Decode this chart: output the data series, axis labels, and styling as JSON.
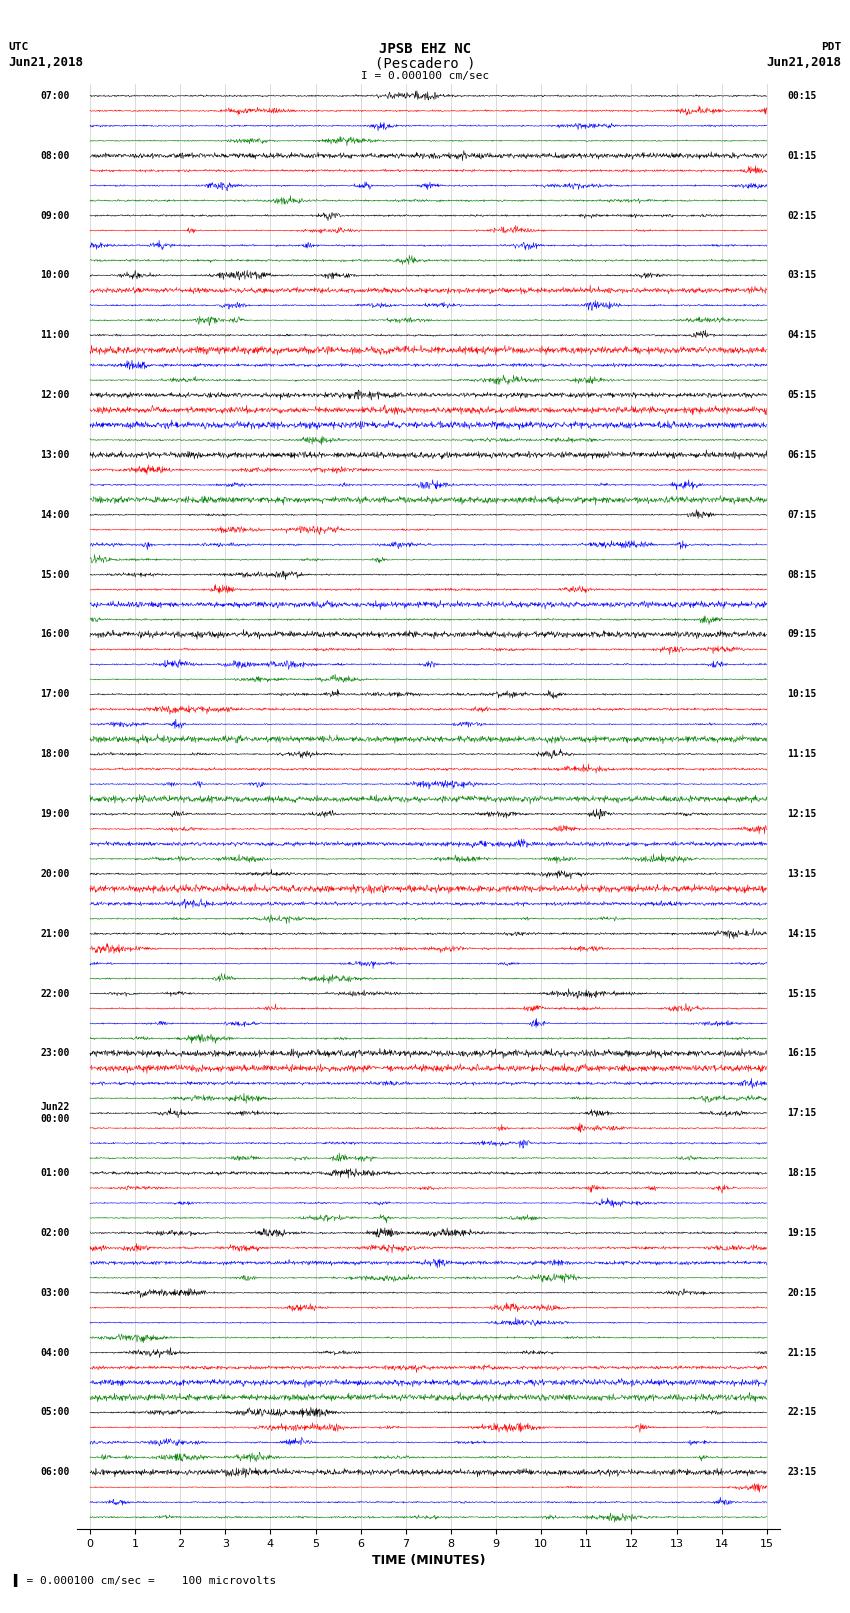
{
  "title_line1": "JPSB EHZ NC",
  "title_line2": "(Pescadero )",
  "scale_text": "I = 0.000100 cm/sec",
  "footer_text": "= 0.000100 cm/sec =    100 microvolts",
  "utc_label": "UTC",
  "utc_date": "Jun21,2018",
  "pdt_label": "PDT",
  "pdt_date": "Jun21,2018",
  "xlabel": "TIME (MINUTES)",
  "colors": [
    "black",
    "red",
    "blue",
    "green"
  ],
  "n_rows": 96,
  "minutes_per_row": 15,
  "trace_amplitude": 0.38,
  "background_color": "white",
  "left_times": [
    "07:00",
    "",
    "",
    "",
    "08:00",
    "",
    "",
    "",
    "09:00",
    "",
    "",
    "",
    "10:00",
    "",
    "",
    "",
    "11:00",
    "",
    "",
    "",
    "12:00",
    "",
    "",
    "",
    "13:00",
    "",
    "",
    "",
    "14:00",
    "",
    "",
    "",
    "15:00",
    "",
    "",
    "",
    "16:00",
    "",
    "",
    "",
    "17:00",
    "",
    "",
    "",
    "18:00",
    "",
    "",
    "",
    "19:00",
    "",
    "",
    "",
    "20:00",
    "",
    "",
    "",
    "21:00",
    "",
    "",
    "",
    "22:00",
    "",
    "",
    "",
    "23:00",
    "",
    "",
    "",
    "Jun22\n00:00",
    "",
    "",
    "",
    "01:00",
    "",
    "",
    "",
    "02:00",
    "",
    "",
    "",
    "03:00",
    "",
    "",
    "",
    "04:00",
    "",
    "",
    "",
    "05:00",
    "",
    "",
    "",
    "06:00",
    "",
    "",
    ""
  ],
  "right_times": [
    "00:15",
    "",
    "",
    "",
    "01:15",
    "",
    "",
    "",
    "02:15",
    "",
    "",
    "",
    "03:15",
    "",
    "",
    "",
    "04:15",
    "",
    "",
    "",
    "05:15",
    "",
    "",
    "",
    "06:15",
    "",
    "",
    "",
    "07:15",
    "",
    "",
    "",
    "08:15",
    "",
    "",
    "",
    "09:15",
    "",
    "",
    "",
    "10:15",
    "",
    "",
    "",
    "11:15",
    "",
    "",
    "",
    "12:15",
    "",
    "",
    "",
    "13:15",
    "",
    "",
    "",
    "14:15",
    "",
    "",
    "",
    "15:15",
    "",
    "",
    "",
    "16:15",
    "",
    "",
    "",
    "17:15",
    "",
    "",
    "",
    "18:15",
    "",
    "",
    "",
    "19:15",
    "",
    "",
    "",
    "20:15",
    "",
    "",
    "",
    "21:15",
    "",
    "",
    "",
    "22:15",
    "",
    "",
    "",
    "23:15",
    "",
    "",
    ""
  ]
}
